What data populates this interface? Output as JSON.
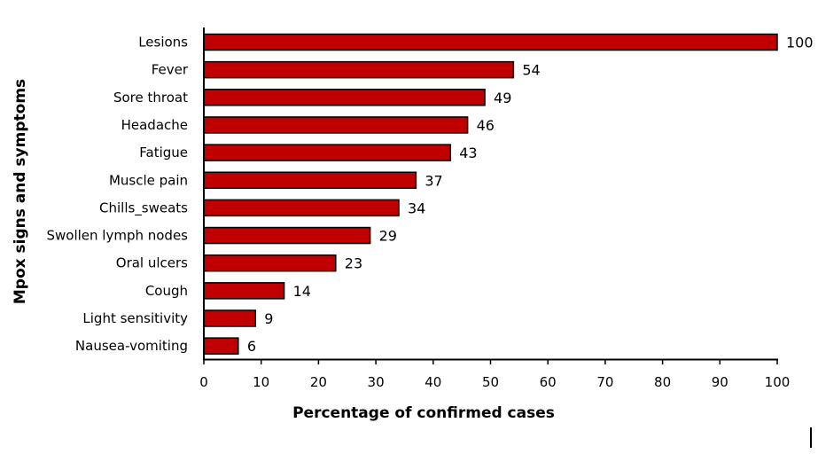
{
  "chart_data": {
    "type": "bar",
    "orientation": "horizontal",
    "title": "",
    "xlabel": "Percentage of confirmed cases",
    "ylabel": "Mpox signs and symptoms",
    "categories": [
      "Lesions",
      "Fever",
      "Sore throat",
      "Headache",
      "Fatigue",
      "Muscle pain",
      "Chills_sweats",
      "Swollen lymph nodes",
      "Oral ulcers",
      "Cough",
      "Light sensitivity",
      "Nausea-vomiting"
    ],
    "values": [
      100,
      54,
      49,
      46,
      43,
      37,
      34,
      29,
      23,
      14,
      9,
      6
    ],
    "xlim": [
      0,
      100
    ],
    "xticks": [
      0,
      10,
      20,
      30,
      40,
      50,
      60,
      70,
      80,
      90,
      100
    ],
    "grid": false,
    "bar_color": "#C00000",
    "edge_color": "#000000"
  }
}
